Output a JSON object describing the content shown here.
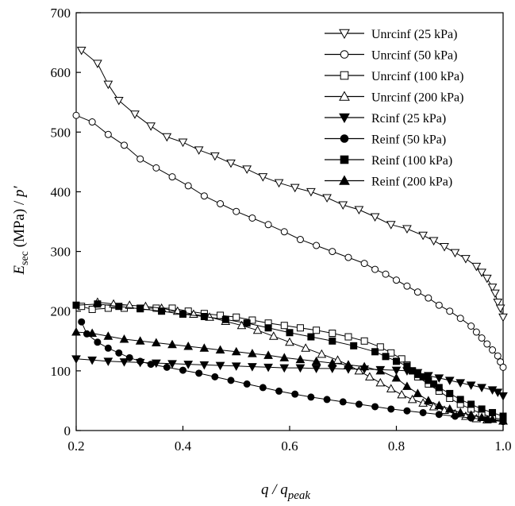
{
  "chart_data": {
    "type": "scatter",
    "xlabel_main": "q / q",
    "xlabel_sub": "peak",
    "ylabel_main": "E",
    "ylabel_sub": "sec",
    "ylabel_rest": " (MPa) / ",
    "ylabel_var": "p′",
    "xlim": [
      0.2,
      1.0
    ],
    "ylim": [
      0,
      700
    ],
    "x_ticks": [
      0.2,
      0.4,
      0.6,
      0.8,
      1.0
    ],
    "x_tick_labels": [
      "0.2",
      "0.4",
      "0.6",
      "0.8",
      "1.0"
    ],
    "y_ticks": [
      0,
      100,
      200,
      300,
      400,
      500,
      600,
      700
    ],
    "y_tick_labels": [
      "0",
      "100",
      "200",
      "300",
      "400",
      "500",
      "600",
      "700"
    ],
    "grid": false,
    "legend_position": "top-right",
    "series": [
      {
        "name": "Unrcinf (25 kPa)",
        "marker": "triangle-down",
        "filled": false,
        "points": [
          [
            0.21,
            637
          ],
          [
            0.24,
            615
          ],
          [
            0.26,
            580
          ],
          [
            0.28,
            553
          ],
          [
            0.31,
            530
          ],
          [
            0.34,
            510
          ],
          [
            0.37,
            492
          ],
          [
            0.4,
            483
          ],
          [
            0.43,
            470
          ],
          [
            0.46,
            460
          ],
          [
            0.49,
            448
          ],
          [
            0.52,
            438
          ],
          [
            0.55,
            425
          ],
          [
            0.58,
            415
          ],
          [
            0.61,
            407
          ],
          [
            0.64,
            400
          ],
          [
            0.67,
            390
          ],
          [
            0.7,
            378
          ],
          [
            0.73,
            370
          ],
          [
            0.76,
            358
          ],
          [
            0.79,
            345
          ],
          [
            0.82,
            338
          ],
          [
            0.85,
            327
          ],
          [
            0.87,
            318
          ],
          [
            0.89,
            308
          ],
          [
            0.91,
            298
          ],
          [
            0.93,
            288
          ],
          [
            0.95,
            275
          ],
          [
            0.96,
            265
          ],
          [
            0.97,
            255
          ],
          [
            0.98,
            240
          ],
          [
            0.985,
            230
          ],
          [
            0.99,
            215
          ],
          [
            0.995,
            205
          ],
          [
            1.0,
            190
          ]
        ]
      },
      {
        "name": "Unrcinf (50 kPa)",
        "marker": "circle",
        "filled": false,
        "points": [
          [
            0.2,
            528
          ],
          [
            0.23,
            517
          ],
          [
            0.26,
            496
          ],
          [
            0.29,
            478
          ],
          [
            0.32,
            455
          ],
          [
            0.35,
            440
          ],
          [
            0.38,
            425
          ],
          [
            0.41,
            410
          ],
          [
            0.44,
            393
          ],
          [
            0.47,
            380
          ],
          [
            0.5,
            367
          ],
          [
            0.53,
            356
          ],
          [
            0.56,
            345
          ],
          [
            0.59,
            333
          ],
          [
            0.62,
            320
          ],
          [
            0.65,
            310
          ],
          [
            0.68,
            300
          ],
          [
            0.71,
            290
          ],
          [
            0.74,
            280
          ],
          [
            0.76,
            270
          ],
          [
            0.78,
            262
          ],
          [
            0.8,
            252
          ],
          [
            0.82,
            242
          ],
          [
            0.84,
            232
          ],
          [
            0.86,
            222
          ],
          [
            0.88,
            210
          ],
          [
            0.9,
            200
          ],
          [
            0.92,
            188
          ],
          [
            0.94,
            175
          ],
          [
            0.95,
            165
          ],
          [
            0.96,
            155
          ],
          [
            0.97,
            145
          ],
          [
            0.98,
            135
          ],
          [
            0.99,
            125
          ],
          [
            0.995,
            115
          ],
          [
            1.0,
            106
          ]
        ]
      },
      {
        "name": "Unrcinf (100 kPa)",
        "marker": "square",
        "filled": false,
        "points": [
          [
            0.21,
            208
          ],
          [
            0.23,
            203
          ],
          [
            0.26,
            205
          ],
          [
            0.29,
            205
          ],
          [
            0.32,
            205
          ],
          [
            0.35,
            205
          ],
          [
            0.38,
            205
          ],
          [
            0.41,
            200
          ],
          [
            0.44,
            196
          ],
          [
            0.47,
            193
          ],
          [
            0.5,
            190
          ],
          [
            0.53,
            185
          ],
          [
            0.56,
            180
          ],
          [
            0.59,
            176
          ],
          [
            0.62,
            172
          ],
          [
            0.65,
            168
          ],
          [
            0.68,
            163
          ],
          [
            0.71,
            157
          ],
          [
            0.74,
            150
          ],
          [
            0.77,
            140
          ],
          [
            0.79,
            130
          ],
          [
            0.81,
            120
          ],
          [
            0.82,
            110
          ],
          [
            0.83,
            100
          ],
          [
            0.84,
            90
          ],
          [
            0.86,
            78
          ],
          [
            0.88,
            66
          ],
          [
            0.9,
            54
          ],
          [
            0.92,
            44
          ],
          [
            0.94,
            36
          ],
          [
            0.96,
            28
          ],
          [
            0.98,
            22
          ],
          [
            1.0,
            18
          ]
        ]
      },
      {
        "name": "Unrcinf (200 kPa)",
        "marker": "triangle-up",
        "filled": false,
        "points": [
          [
            0.24,
            215
          ],
          [
            0.27,
            212
          ],
          [
            0.3,
            210
          ],
          [
            0.33,
            208
          ],
          [
            0.36,
            205
          ],
          [
            0.39,
            200
          ],
          [
            0.42,
            195
          ],
          [
            0.45,
            190
          ],
          [
            0.48,
            183
          ],
          [
            0.51,
            176
          ],
          [
            0.54,
            168
          ],
          [
            0.57,
            158
          ],
          [
            0.6,
            148
          ],
          [
            0.63,
            138
          ],
          [
            0.66,
            128
          ],
          [
            0.69,
            118
          ],
          [
            0.71,
            110
          ],
          [
            0.73,
            100
          ],
          [
            0.75,
            90
          ],
          [
            0.77,
            80
          ],
          [
            0.79,
            70
          ],
          [
            0.81,
            60
          ],
          [
            0.83,
            52
          ],
          [
            0.85,
            46
          ],
          [
            0.87,
            40
          ],
          [
            0.89,
            34
          ],
          [
            0.91,
            28
          ],
          [
            0.93,
            24
          ],
          [
            0.95,
            20
          ],
          [
            0.97,
            18
          ],
          [
            1.0,
            16
          ]
        ]
      },
      {
        "name": "Rcinf (25 kPa)",
        "marker": "triangle-down",
        "filled": true,
        "points": [
          [
            0.2,
            120
          ],
          [
            0.23,
            118
          ],
          [
            0.26,
            116
          ],
          [
            0.29,
            115
          ],
          [
            0.32,
            114
          ],
          [
            0.35,
            113
          ],
          [
            0.38,
            112
          ],
          [
            0.41,
            111
          ],
          [
            0.44,
            110
          ],
          [
            0.47,
            109
          ],
          [
            0.5,
            108
          ],
          [
            0.53,
            107
          ],
          [
            0.56,
            106
          ],
          [
            0.59,
            105
          ],
          [
            0.62,
            105
          ],
          [
            0.65,
            104
          ],
          [
            0.68,
            104
          ],
          [
            0.71,
            103
          ],
          [
            0.74,
            103
          ],
          [
            0.77,
            102
          ],
          [
            0.8,
            101
          ],
          [
            0.82,
            100
          ],
          [
            0.84,
            97
          ],
          [
            0.86,
            92
          ],
          [
            0.88,
            88
          ],
          [
            0.9,
            84
          ],
          [
            0.92,
            80
          ],
          [
            0.94,
            76
          ],
          [
            0.96,
            72
          ],
          [
            0.98,
            68
          ],
          [
            0.99,
            64
          ],
          [
            1.0,
            58
          ]
        ]
      },
      {
        "name": "Reinf (50 kPa)",
        "marker": "circle",
        "filled": true,
        "points": [
          [
            0.21,
            182
          ],
          [
            0.22,
            162
          ],
          [
            0.24,
            148
          ],
          [
            0.26,
            138
          ],
          [
            0.28,
            130
          ],
          [
            0.3,
            122
          ],
          [
            0.32,
            116
          ],
          [
            0.34,
            111
          ],
          [
            0.37,
            106
          ],
          [
            0.4,
            101
          ],
          [
            0.43,
            96
          ],
          [
            0.46,
            90
          ],
          [
            0.49,
            84
          ],
          [
            0.52,
            78
          ],
          [
            0.55,
            72
          ],
          [
            0.58,
            66
          ],
          [
            0.61,
            61
          ],
          [
            0.64,
            56
          ],
          [
            0.67,
            52
          ],
          [
            0.7,
            48
          ],
          [
            0.73,
            44
          ],
          [
            0.76,
            40
          ],
          [
            0.79,
            36
          ],
          [
            0.82,
            33
          ],
          [
            0.85,
            30
          ],
          [
            0.88,
            27
          ],
          [
            0.91,
            24
          ],
          [
            0.94,
            21
          ],
          [
            0.97,
            18
          ],
          [
            1.0,
            15
          ]
        ]
      },
      {
        "name": "Reinf (100 kPa)",
        "marker": "square",
        "filled": true,
        "points": [
          [
            0.2,
            210
          ],
          [
            0.24,
            212
          ],
          [
            0.28,
            208
          ],
          [
            0.32,
            204
          ],
          [
            0.36,
            200
          ],
          [
            0.4,
            195
          ],
          [
            0.44,
            191
          ],
          [
            0.48,
            186
          ],
          [
            0.52,
            180
          ],
          [
            0.56,
            172
          ],
          [
            0.6,
            164
          ],
          [
            0.64,
            157
          ],
          [
            0.68,
            150
          ],
          [
            0.72,
            142
          ],
          [
            0.76,
            132
          ],
          [
            0.78,
            124
          ],
          [
            0.8,
            116
          ],
          [
            0.82,
            108
          ],
          [
            0.83,
            100
          ],
          [
            0.84,
            94
          ],
          [
            0.85,
            90
          ],
          [
            0.86,
            84
          ],
          [
            0.87,
            78
          ],
          [
            0.88,
            72
          ],
          [
            0.9,
            62
          ],
          [
            0.92,
            52
          ],
          [
            0.94,
            44
          ],
          [
            0.96,
            36
          ],
          [
            0.98,
            30
          ],
          [
            1.0,
            24
          ]
        ]
      },
      {
        "name": "Reinf (200 kPa)",
        "marker": "triangle-up",
        "filled": true,
        "points": [
          [
            0.2,
            165
          ],
          [
            0.23,
            163
          ],
          [
            0.26,
            158
          ],
          [
            0.29,
            153
          ],
          [
            0.32,
            150
          ],
          [
            0.35,
            147
          ],
          [
            0.38,
            144
          ],
          [
            0.41,
            141
          ],
          [
            0.44,
            138
          ],
          [
            0.47,
            135
          ],
          [
            0.5,
            132
          ],
          [
            0.53,
            129
          ],
          [
            0.56,
            126
          ],
          [
            0.59,
            122
          ],
          [
            0.62,
            119
          ],
          [
            0.65,
            116
          ],
          [
            0.68,
            113
          ],
          [
            0.71,
            110
          ],
          [
            0.74,
            107
          ],
          [
            0.77,
            100
          ],
          [
            0.8,
            88
          ],
          [
            0.82,
            74
          ],
          [
            0.84,
            62
          ],
          [
            0.86,
            50
          ],
          [
            0.88,
            42
          ],
          [
            0.9,
            36
          ],
          [
            0.92,
            30
          ],
          [
            0.94,
            26
          ],
          [
            0.96,
            22
          ],
          [
            0.98,
            19
          ],
          [
            1.0,
            16
          ]
        ]
      }
    ]
  }
}
